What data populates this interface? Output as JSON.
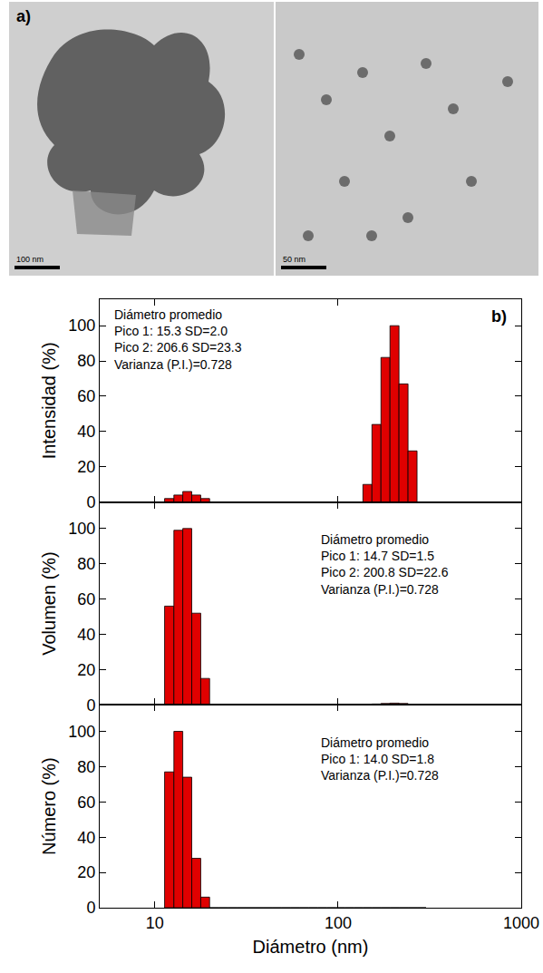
{
  "figure": {
    "panel_a": {
      "label": "a)",
      "scale_bars": [
        "100 nm",
        "50 nm"
      ]
    }
  },
  "chart_data": [
    {
      "type": "histogram",
      "label": "b)",
      "ylabel": "Intensidad (%)",
      "color": "#e00000",
      "log": "x",
      "grid": false,
      "xlim": [
        5,
        1000
      ],
      "xticks": [
        10,
        100,
        1000
      ],
      "ylim": [
        0,
        115
      ],
      "yticks": [
        0,
        20,
        40,
        60,
        80,
        100
      ],
      "tick_labels": "y",
      "annotation": [
        "Diámetro promedio",
        "Pico 1: 15.3 SD=2.0",
        "Pico 2: 206.6 SD=23.3",
        "Varianza (P.I.)=0.728"
      ],
      "bins": [
        11.3,
        12.7,
        14.2,
        15.9,
        17.8,
        19.9,
        22.3,
        25.0,
        28.0,
        31.3,
        35.1,
        39.3,
        44.0,
        49.3,
        55.2,
        61.9,
        69.3,
        77.6,
        86.9,
        97.3,
        109.0,
        122.1,
        136.7,
        153.1,
        171.5,
        192.1,
        215.1,
        241.0,
        269.9,
        302.3
      ],
      "values": [
        2,
        4,
        6,
        4,
        2,
        0,
        0,
        0,
        0,
        0,
        0,
        0,
        0,
        0,
        0,
        0,
        0,
        0,
        0,
        0,
        0,
        0,
        10,
        44,
        82,
        100,
        67,
        29,
        0
      ]
    },
    {
      "type": "histogram",
      "ylabel": "Volumen (%)",
      "color": "#e00000",
      "log": "x",
      "grid": false,
      "xlim": [
        5,
        1000
      ],
      "xticks": [
        10,
        100,
        1000
      ],
      "ylim": [
        0,
        115
      ],
      "yticks": [
        0,
        20,
        40,
        60,
        80,
        100
      ],
      "tick_labels": "y",
      "annotation": [
        "Diámetro promedio",
        "Pico 1: 14.7 SD=1.5",
        "Pico 2: 200.8 SD=22.6",
        "Varianza (P.I.)=0.728"
      ],
      "bins": [
        11.3,
        12.7,
        14.2,
        15.9,
        17.8,
        19.9,
        22.3,
        25.0,
        28.0,
        31.3,
        35.1,
        39.3,
        44.0,
        49.3,
        55.2,
        61.9,
        69.3,
        77.6,
        86.9,
        97.3,
        109.0,
        122.1,
        136.7,
        153.1,
        171.5,
        192.1,
        215.1,
        241.0,
        269.9,
        302.3
      ],
      "values": [
        56,
        99,
        100,
        52,
        15,
        0,
        0,
        0,
        0,
        0,
        0,
        0,
        0,
        0,
        0,
        0,
        0,
        0,
        0,
        0,
        0,
        0,
        0,
        0.5,
        0.8,
        1,
        0.8,
        0,
        0
      ]
    },
    {
      "type": "histogram",
      "ylabel": "Número (%)",
      "xlabel": "Diámetro (nm)",
      "color": "#e00000",
      "log": "x",
      "grid": false,
      "xlim": [
        5,
        1000
      ],
      "xticks": [
        10,
        100,
        1000
      ],
      "ylim": [
        0,
        115
      ],
      "yticks": [
        0,
        20,
        40,
        60,
        80,
        100
      ],
      "annotation": [
        "Diámetro promedio",
        "Pico 1: 14.0 SD=1.8",
        "Varianza (P.I.)=0.728"
      ],
      "bins": [
        11.3,
        12.7,
        14.2,
        15.9,
        17.8,
        19.9,
        22.3,
        25.0,
        28.0,
        31.3,
        35.1,
        39.3,
        44.0,
        49.3,
        55.2,
        61.9,
        69.3,
        77.6,
        86.9,
        97.3,
        109.0,
        122.1,
        136.7,
        153.1,
        171.5,
        192.1,
        215.1,
        241.0,
        269.9,
        302.3
      ],
      "values": [
        77,
        100,
        74,
        28,
        6,
        0,
        0,
        0,
        0,
        0,
        0,
        0,
        0,
        0,
        0,
        0,
        0,
        0,
        0,
        0,
        0,
        0,
        0,
        0,
        0,
        0,
        0,
        0,
        0
      ]
    }
  ]
}
